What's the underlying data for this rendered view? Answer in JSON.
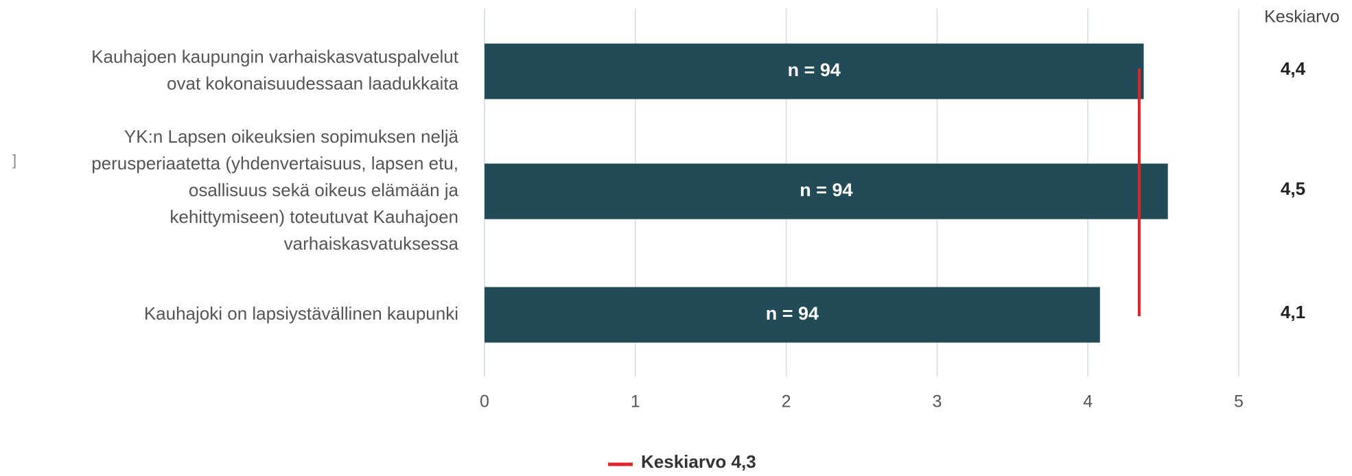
{
  "chart_data": {
    "type": "barh",
    "categories": [
      [
        "Kauhajoen kaupungin varhaiskasvatuspalvelut",
        "ovat kokonaisuudessaan laadukkaita"
      ],
      [
        "YK:n Lapsen oikeuksien sopimuksen neljä",
        "perusperiaatetta (yhdenvertaisuus, lapsen etu,",
        "osallisuus sekä oikeus elämään ja",
        "kehittymiseen) toteutuvat Kauhajoen",
        "varhaiskasvatuksessa"
      ],
      [
        "Kauhajoki on lapsiystävällinen kaupunki"
      ]
    ],
    "values": [
      4.37,
      4.53,
      4.08
    ],
    "value_labels": [
      "4,4",
      "4,5",
      "4,1"
    ],
    "value_column_title": "Keskiarvo",
    "bar_labels": [
      "n = 94",
      "n = 94",
      "n = 94"
    ],
    "color": "#224a57",
    "xlim": [
      0,
      5
    ],
    "xticks": [
      0,
      1,
      2,
      3,
      4,
      5
    ],
    "grid": true,
    "mean": {
      "value": 4.34,
      "label": "Keskiarvo 4,3",
      "color": "#e0222a"
    },
    "left_fragment": "]"
  }
}
